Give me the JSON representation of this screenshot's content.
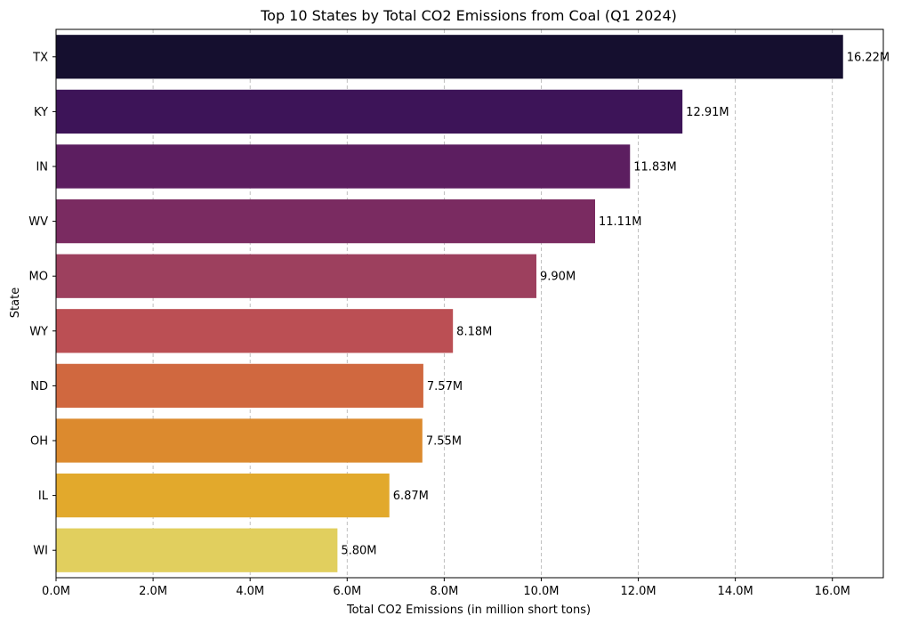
{
  "chart_data": {
    "type": "bar",
    "orientation": "horizontal",
    "title": "Top 10 States by Total CO2 Emissions from Coal (Q1 2024)",
    "xlabel": "Total CO2 Emissions (in million short tons)",
    "ylabel": "State",
    "categories": [
      "TX",
      "KY",
      "IN",
      "WV",
      "MO",
      "WY",
      "ND",
      "OH",
      "IL",
      "WI"
    ],
    "values": [
      16.22,
      12.91,
      11.83,
      11.11,
      9.9,
      8.18,
      7.57,
      7.55,
      6.87,
      5.8
    ],
    "data_labels": [
      "16.22M",
      "12.91M",
      "11.83M",
      "11.11M",
      "9.90M",
      "8.18M",
      "7.57M",
      "7.55M",
      "6.87M",
      "5.80M"
    ],
    "colors": [
      "#150f2f",
      "#3d1458",
      "#5c1e60",
      "#7a2b61",
      "#9d405e",
      "#bb4f54",
      "#d0683f",
      "#dc8a2e",
      "#e2a92c",
      "#e1cf5e"
    ],
    "xlim": [
      0,
      17.05
    ],
    "xticks": [
      0,
      2,
      4,
      6,
      8,
      10,
      12,
      14,
      16
    ],
    "xtick_labels": [
      "0.0M",
      "2.0M",
      "4.0M",
      "6.0M",
      "8.0M",
      "10.0M",
      "12.0M",
      "14.0M",
      "16.0M"
    ],
    "grid": "x-dashed"
  }
}
